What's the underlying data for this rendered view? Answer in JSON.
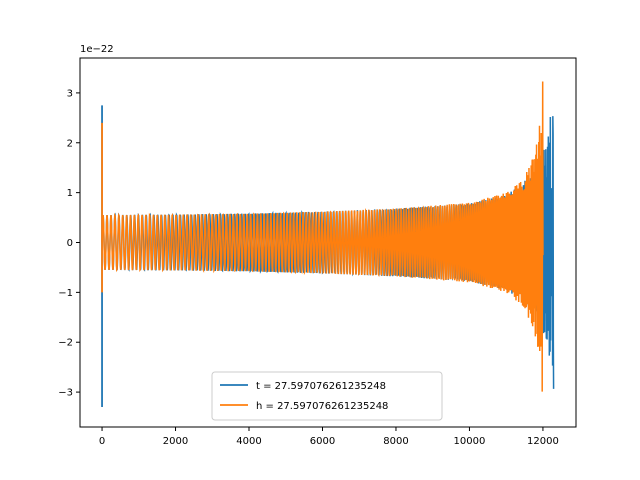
{
  "chart_data": {
    "type": "line",
    "title": "",
    "xlabel": "",
    "ylabel": "",
    "y_scale_label": "1e−22",
    "xlim": [
      -600,
      12900
    ],
    "ylim": [
      -3.7,
      3.7
    ],
    "xticks": [
      0,
      2000,
      4000,
      6000,
      8000,
      10000,
      12000
    ],
    "xtick_labels": [
      "0",
      "2000",
      "4000",
      "6000",
      "8000",
      "10000",
      "12000"
    ],
    "yticks": [
      -3,
      -2,
      -1,
      0,
      1,
      2,
      3
    ],
    "ytick_labels": [
      "−3",
      "−2",
      "−1",
      "0",
      "1",
      "2",
      "3"
    ],
    "grid": false,
    "legend_position": "lower center",
    "series": [
      {
        "name": "t = 27.597076261235248",
        "color": "#1f77b4",
        "description": "chirp waveform: amplitude ~0.55 near start rising to ~3.3 at merger near x=12290, with spike to 2.75/-3.3 at x=0",
        "envelope": [
          [
            0,
            0.55
          ],
          [
            2000,
            0.56
          ],
          [
            4000,
            0.58
          ],
          [
            6000,
            0.62
          ],
          [
            8000,
            0.68
          ],
          [
            10000,
            0.78
          ],
          [
            11000,
            0.95
          ],
          [
            11800,
            1.4
          ],
          [
            12100,
            2.0
          ],
          [
            12250,
            2.8
          ],
          [
            12290,
            3.35
          ]
        ],
        "start_spike": {
          "x": 0,
          "max": 2.75,
          "min": -3.3
        },
        "end_x": 12290
      },
      {
        "name": "h = 27.597076261235248",
        "color": "#ff7f0e",
        "description": "chirp waveform: amplitude ~0.55 rising to ~3.35 at merger near x=12000, then zero to x=12290",
        "envelope": [
          [
            0,
            0.55
          ],
          [
            2000,
            0.56
          ],
          [
            4000,
            0.58
          ],
          [
            6000,
            0.62
          ],
          [
            8000,
            0.68
          ],
          [
            10000,
            0.8
          ],
          [
            11000,
            1.0
          ],
          [
            11500,
            1.3
          ],
          [
            11800,
            1.9
          ],
          [
            11950,
            2.6
          ],
          [
            12000,
            3.35
          ]
        ],
        "start_spike": {
          "x": 0,
          "max": 2.4,
          "min": -1.0
        },
        "end_x": 12000
      }
    ]
  }
}
